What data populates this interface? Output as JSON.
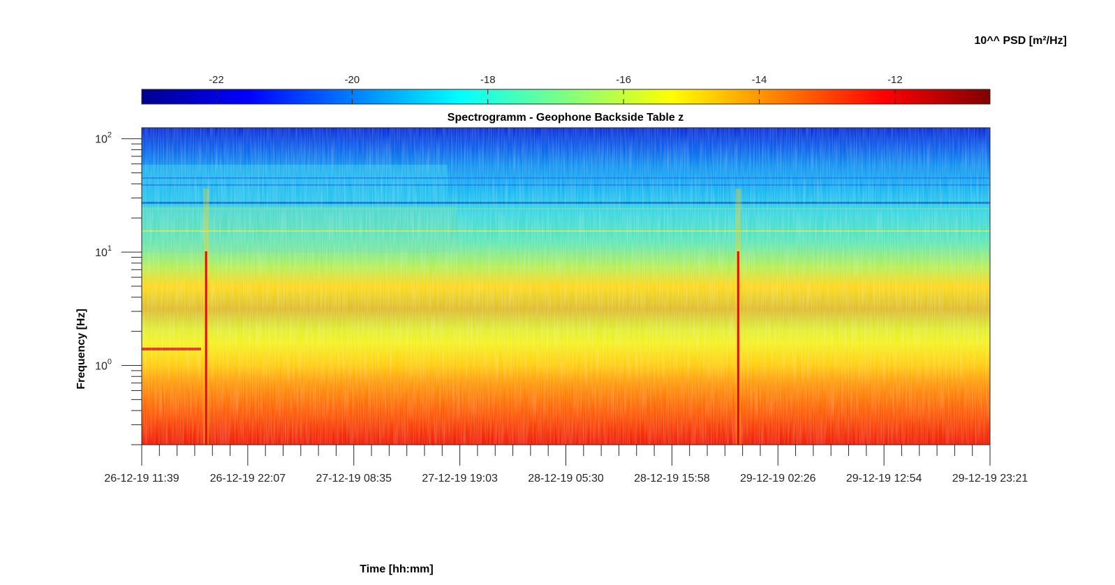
{
  "chart_data": {
    "type": "heatmap",
    "title": "Spectrogramm - Geophone Backside Table z",
    "xlabel": "Time [hh:mm]",
    "ylabel": "Frequency [Hz]",
    "y_scale": "log",
    "ylim": [
      0.2,
      125
    ],
    "y_major_ticks": [
      {
        "value": 1,
        "base": "10",
        "exp": "0"
      },
      {
        "value": 10,
        "base": "10",
        "exp": "1"
      },
      {
        "value": 100,
        "base": "10",
        "exp": "2"
      }
    ],
    "x_tick_labels": [
      "26-12-19 11:39",
      "26-12-19 22:07",
      "27-12-19 08:35",
      "27-12-19 19:03",
      "28-12-19 05:30",
      "28-12-19 15:58",
      "29-12-19 02:26",
      "29-12-19 12:54",
      "29-12-19 23:21"
    ],
    "colorbar": {
      "label": "10^^ PSD [m²/Hz]",
      "colormap": "jet",
      "range": [
        -23.1,
        -10.6
      ],
      "ticks": [
        -22,
        -20,
        -18,
        -16,
        -14,
        -12
      ],
      "location": "top"
    },
    "psd_profile_log10": [
      {
        "f": 100,
        "v": -22.2
      },
      {
        "f": 40,
        "v": -20.5
      },
      {
        "f": 20,
        "v": -19.0
      },
      {
        "f": 10,
        "v": -18.2
      },
      {
        "f": 5,
        "v": -17.0
      },
      {
        "f": 3,
        "v": -15.6
      },
      {
        "f": 1,
        "v": -16.0
      },
      {
        "f": 0.5,
        "v": -13.6
      },
      {
        "f": 0.25,
        "v": -12.0
      }
    ],
    "events": [
      {
        "time": "26-12-19 18:00",
        "type": "broadband transient"
      },
      {
        "time": "28-12-19 22:30",
        "type": "broadband transient"
      }
    ],
    "grid": false
  }
}
